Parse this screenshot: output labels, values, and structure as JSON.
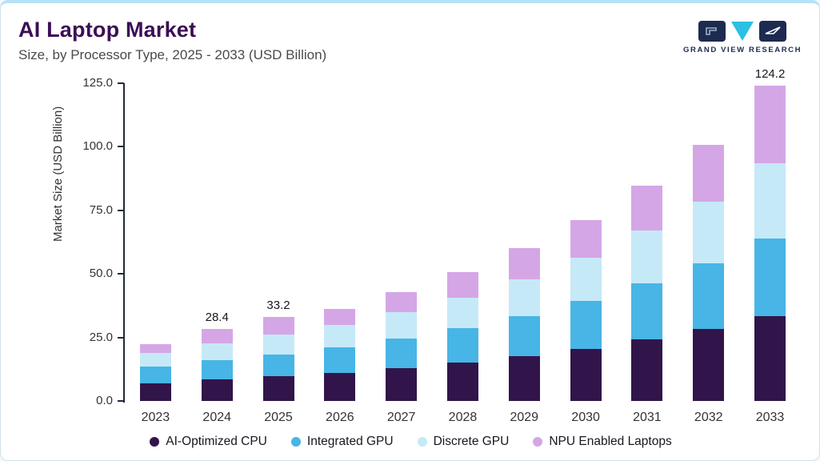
{
  "header": {
    "title": "AI Laptop Market",
    "subtitle": "Size, by Processor Type, 2025 - 2033 (USD Billion)",
    "logo_text": "GRAND VIEW RESEARCH"
  },
  "colors": {
    "accent_top": "#b5e2f5",
    "title": "#3c0d56",
    "logo_navy": "#1d2b50",
    "logo_cyan": "#2bc0e4",
    "axis": "#23283a"
  },
  "chart_data": {
    "type": "bar",
    "stacked": true,
    "title": "AI Laptop Market",
    "subtitle": "Size, by Processor Type, 2025 - 2033 (USD Billion)",
    "xlabel": "",
    "ylabel": "Market Size (USD Billion)",
    "ylim": [
      0,
      125
    ],
    "yticks": [
      0,
      25,
      50,
      75,
      100,
      125
    ],
    "ytick_labels": [
      "0.0",
      "25.0",
      "50.0",
      "75.0",
      "100.0",
      "125.0"
    ],
    "grid": false,
    "legend_position": "bottom",
    "categories": [
      "2023",
      "2024",
      "2025",
      "2026",
      "2027",
      "2028",
      "2029",
      "2030",
      "2031",
      "2032",
      "2033"
    ],
    "series": [
      {
        "name": "AI-Optimized CPU",
        "color": "#31154a",
        "values": [
          7.0,
          8.4,
          9.8,
          11.0,
          13.0,
          15.0,
          17.6,
          20.6,
          24.2,
          28.2,
          33.4
        ]
      },
      {
        "name": "Integrated GPU",
        "color": "#47b5e6",
        "values": [
          6.5,
          7.6,
          8.6,
          10.2,
          11.6,
          13.6,
          15.8,
          18.8,
          22.2,
          26.0,
          30.6
        ]
      },
      {
        "name": "Discrete GPU",
        "color": "#c6e9f7",
        "values": [
          5.3,
          6.8,
          7.8,
          8.6,
          10.4,
          12.2,
          14.6,
          17.0,
          20.6,
          24.2,
          29.6
        ]
      },
      {
        "name": "NPU Enabled Laptops",
        "color": "#d5a6e6",
        "values": [
          3.5,
          5.6,
          7.0,
          6.5,
          8.0,
          10.0,
          12.0,
          14.8,
          17.8,
          22.4,
          30.6
        ]
      }
    ],
    "value_labels": [
      {
        "category": "2024",
        "text": "28.4"
      },
      {
        "category": "2025",
        "text": "33.2"
      },
      {
        "category": "2033",
        "text": "124.2"
      }
    ]
  }
}
